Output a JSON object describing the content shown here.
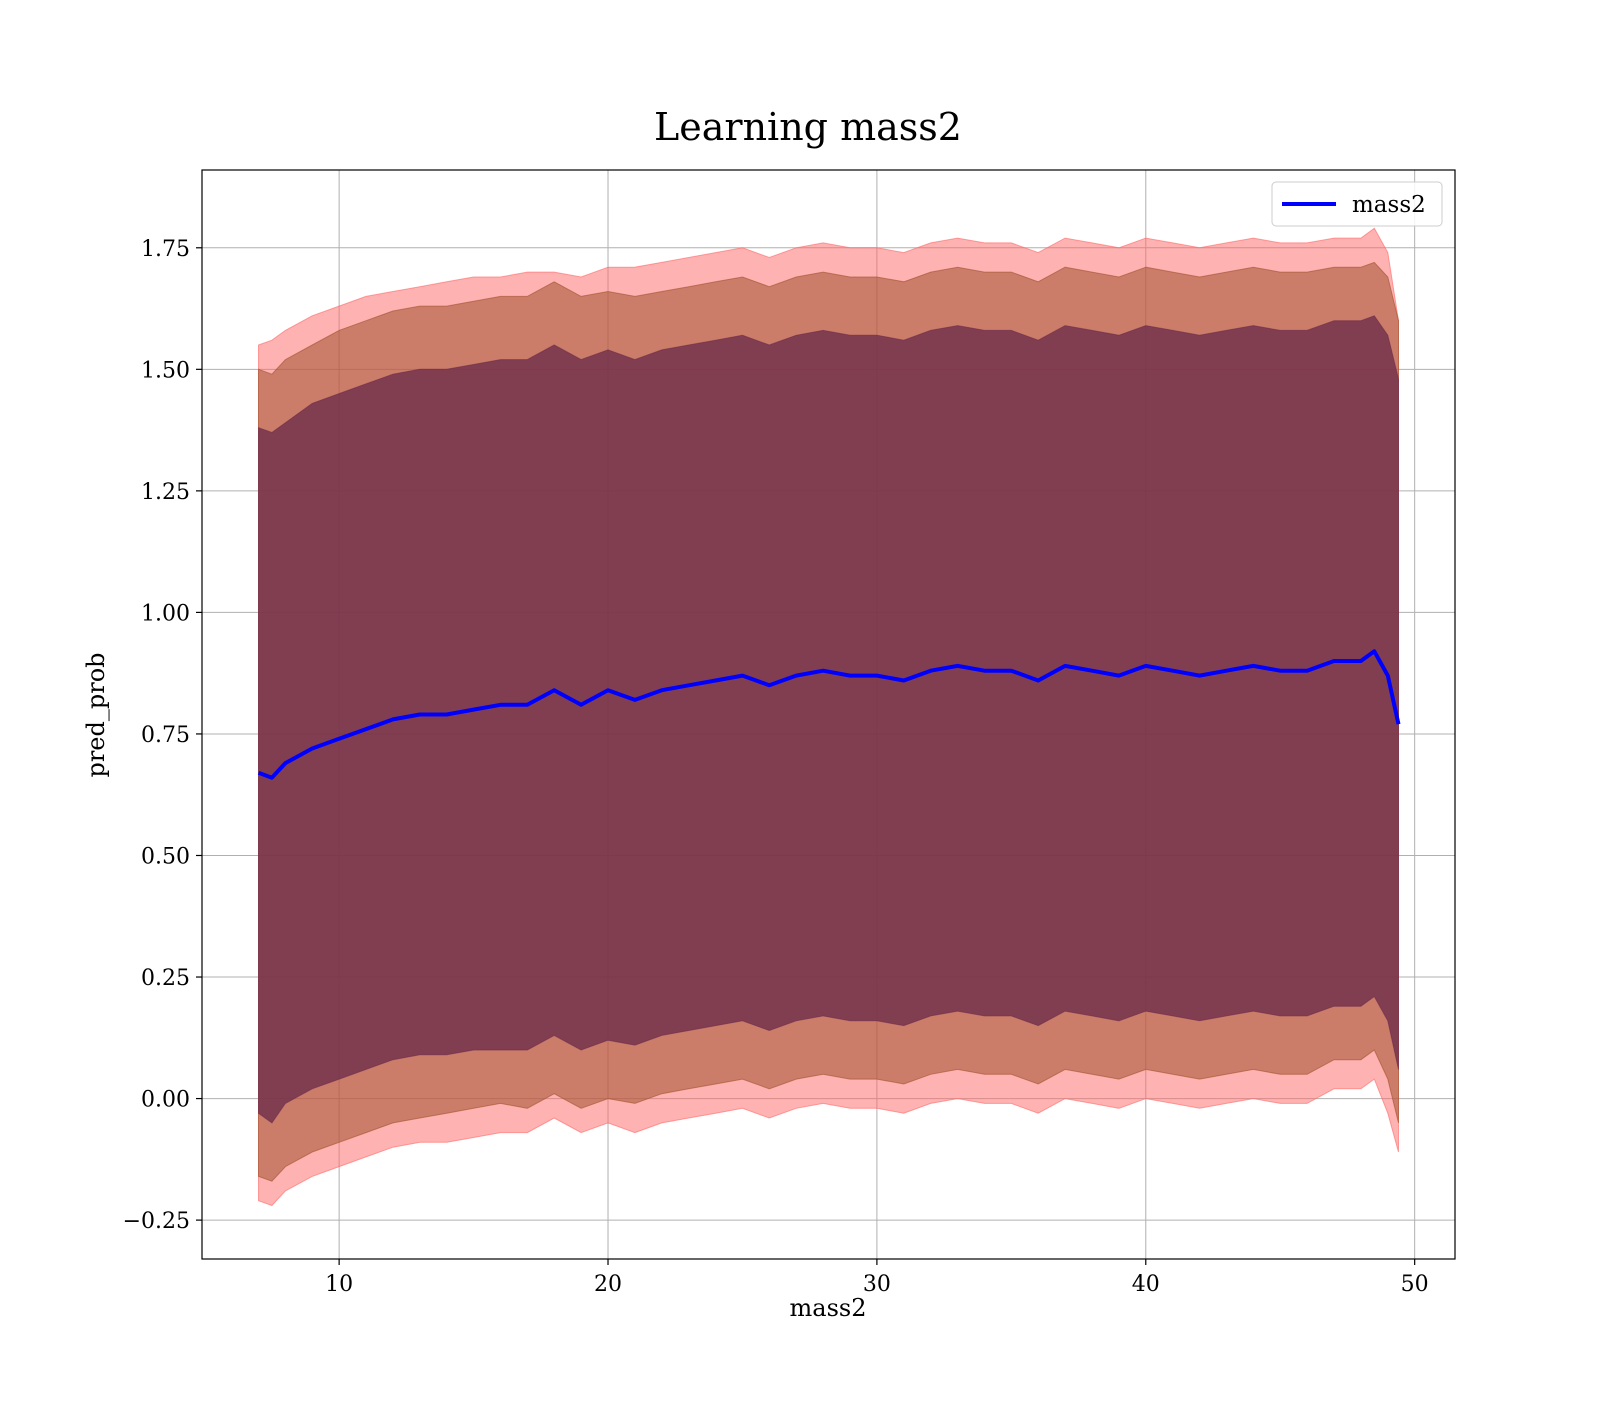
{
  "chart_data": {
    "type": "line",
    "title": "Learning mass2",
    "xlabel": "mass2",
    "ylabel": "pred_prob",
    "xlim": [
      4.9,
      51.5
    ],
    "ylim": [
      -0.33,
      1.91
    ],
    "xticks": [
      10,
      20,
      30,
      40,
      50
    ],
    "xtick_labels": [
      "10",
      "20",
      "30",
      "40",
      "50"
    ],
    "yticks": [
      -0.25,
      0,
      0.25,
      0.5,
      0.75,
      1.0,
      1.25,
      1.5,
      1.75
    ],
    "ytick_labels": [
      "−0.25",
      "0.00",
      "0.25",
      "0.50",
      "0.75",
      "1.00",
      "1.25",
      "1.50",
      "1.75"
    ],
    "grid": true,
    "legend": {
      "position": "top-right",
      "entries": [
        "mass2"
      ]
    },
    "x": [
      7.0,
      7.5,
      8.0,
      9.0,
      10.0,
      11.0,
      12.0,
      13.0,
      14.0,
      15.0,
      16.0,
      17.0,
      18.0,
      19.0,
      20.0,
      21.0,
      22.0,
      23.0,
      24.0,
      25.0,
      26.0,
      27.0,
      28.0,
      29.0,
      30.0,
      31.0,
      32.0,
      33.0,
      34.0,
      35.0,
      36.0,
      37.0,
      38.0,
      39.0,
      40.0,
      41.0,
      42.0,
      43.0,
      44.0,
      45.0,
      46.0,
      47.0,
      47.5,
      48.0,
      48.5,
      49.0,
      49.4
    ],
    "series": [
      {
        "name": "mass2",
        "color": "#0000ff",
        "values": [
          0.67,
          0.66,
          0.69,
          0.72,
          0.74,
          0.76,
          0.78,
          0.79,
          0.79,
          0.8,
          0.81,
          0.81,
          0.84,
          0.81,
          0.84,
          0.82,
          0.84,
          0.85,
          0.86,
          0.87,
          0.85,
          0.87,
          0.88,
          0.87,
          0.87,
          0.86,
          0.88,
          0.89,
          0.88,
          0.88,
          0.86,
          0.89,
          0.88,
          0.87,
          0.89,
          0.88,
          0.87,
          0.88,
          0.89,
          0.88,
          0.88,
          0.9,
          0.9,
          0.9,
          0.92,
          0.87,
          0.77
        ]
      }
    ],
    "bands": [
      {
        "name": "band-2std",
        "color": "#ff6666",
        "upper": [
          1.55,
          1.56,
          1.58,
          1.61,
          1.63,
          1.65,
          1.66,
          1.67,
          1.68,
          1.69,
          1.69,
          1.7,
          1.7,
          1.69,
          1.71,
          1.71,
          1.72,
          1.73,
          1.74,
          1.75,
          1.73,
          1.75,
          1.76,
          1.75,
          1.75,
          1.74,
          1.76,
          1.77,
          1.76,
          1.76,
          1.74,
          1.77,
          1.76,
          1.75,
          1.77,
          1.76,
          1.75,
          1.76,
          1.77,
          1.76,
          1.76,
          1.77,
          1.77,
          1.77,
          1.79,
          1.74,
          1.6
        ],
        "lower": [
          -0.21,
          -0.22,
          -0.19,
          -0.16,
          -0.14,
          -0.12,
          -0.1,
          -0.09,
          -0.09,
          -0.08,
          -0.07,
          -0.07,
          -0.04,
          -0.07,
          -0.05,
          -0.07,
          -0.05,
          -0.04,
          -0.03,
          -0.02,
          -0.04,
          -0.02,
          -0.01,
          -0.02,
          -0.02,
          -0.03,
          -0.01,
          0.0,
          -0.01,
          -0.01,
          -0.03,
          0.0,
          -0.01,
          -0.02,
          0.0,
          -0.01,
          -0.02,
          -0.01,
          0.0,
          -0.01,
          -0.01,
          0.02,
          0.02,
          0.02,
          0.04,
          -0.03,
          -0.11
        ]
      },
      {
        "name": "band-1.5std",
        "color": "#a0522d",
        "upper": [
          1.5,
          1.49,
          1.52,
          1.55,
          1.58,
          1.6,
          1.62,
          1.63,
          1.63,
          1.64,
          1.65,
          1.65,
          1.68,
          1.65,
          1.66,
          1.65,
          1.66,
          1.67,
          1.68,
          1.69,
          1.67,
          1.69,
          1.7,
          1.69,
          1.69,
          1.68,
          1.7,
          1.71,
          1.7,
          1.7,
          1.68,
          1.71,
          1.7,
          1.69,
          1.71,
          1.7,
          1.69,
          1.7,
          1.71,
          1.7,
          1.7,
          1.71,
          1.71,
          1.71,
          1.72,
          1.69,
          1.6
        ],
        "lower": [
          -0.16,
          -0.17,
          -0.14,
          -0.11,
          -0.09,
          -0.07,
          -0.05,
          -0.04,
          -0.03,
          -0.02,
          -0.01,
          -0.02,
          0.01,
          -0.02,
          0.0,
          -0.01,
          0.01,
          0.02,
          0.03,
          0.04,
          0.02,
          0.04,
          0.05,
          0.04,
          0.04,
          0.03,
          0.05,
          0.06,
          0.05,
          0.05,
          0.03,
          0.06,
          0.05,
          0.04,
          0.06,
          0.05,
          0.04,
          0.05,
          0.06,
          0.05,
          0.05,
          0.08,
          0.08,
          0.08,
          0.1,
          0.04,
          -0.05
        ]
      },
      {
        "name": "band-1std",
        "color": "#6a2a4a",
        "upper": [
          1.38,
          1.37,
          1.39,
          1.43,
          1.45,
          1.47,
          1.49,
          1.5,
          1.5,
          1.51,
          1.52,
          1.52,
          1.55,
          1.52,
          1.54,
          1.52,
          1.54,
          1.55,
          1.56,
          1.57,
          1.55,
          1.57,
          1.58,
          1.57,
          1.57,
          1.56,
          1.58,
          1.59,
          1.58,
          1.58,
          1.56,
          1.59,
          1.58,
          1.57,
          1.59,
          1.58,
          1.57,
          1.58,
          1.59,
          1.58,
          1.58,
          1.6,
          1.6,
          1.6,
          1.61,
          1.57,
          1.48
        ],
        "lower": [
          -0.03,
          -0.05,
          -0.01,
          0.02,
          0.04,
          0.06,
          0.08,
          0.09,
          0.09,
          0.1,
          0.1,
          0.1,
          0.13,
          0.1,
          0.12,
          0.11,
          0.13,
          0.14,
          0.15,
          0.16,
          0.14,
          0.16,
          0.17,
          0.16,
          0.16,
          0.15,
          0.17,
          0.18,
          0.17,
          0.17,
          0.15,
          0.18,
          0.17,
          0.16,
          0.18,
          0.17,
          0.16,
          0.17,
          0.18,
          0.17,
          0.17,
          0.19,
          0.19,
          0.19,
          0.21,
          0.16,
          0.06
        ]
      }
    ]
  }
}
